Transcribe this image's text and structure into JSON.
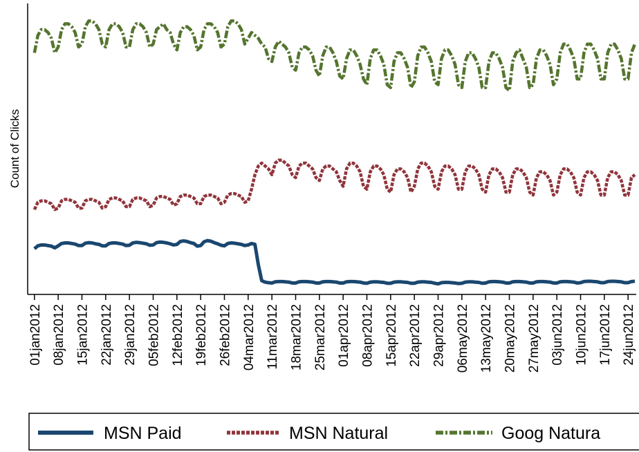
{
  "chart_data": {
    "type": "line",
    "ylabel": "Count of Clicks",
    "x": [
      0,
      1,
      2,
      3,
      4,
      5,
      6,
      7,
      8,
      9,
      10,
      11,
      12,
      13,
      14,
      15,
      16,
      17,
      18,
      19,
      20,
      21,
      22,
      23,
      24,
      25,
      26,
      27,
      28,
      29,
      30,
      31,
      32,
      33,
      34,
      35,
      36,
      37,
      38,
      39,
      40,
      41,
      42,
      43,
      44,
      45,
      46,
      47,
      48,
      49,
      50,
      51,
      52,
      53,
      54,
      55,
      56,
      57,
      58,
      59,
      60,
      61,
      62,
      63,
      64,
      65,
      66,
      67,
      68,
      69,
      70,
      71,
      72,
      73,
      74,
      75,
      76,
      77,
      78,
      79,
      80,
      81,
      82,
      83,
      84,
      85,
      86,
      87,
      88,
      89,
      90,
      91,
      92,
      93,
      94,
      95,
      96,
      97,
      98,
      99,
      100,
      101,
      102,
      103,
      104,
      105,
      106,
      107,
      108,
      109,
      110,
      111,
      112,
      113,
      114,
      115,
      116,
      117,
      118,
      119,
      120,
      121,
      122,
      123,
      124,
      125,
      126,
      127,
      128,
      129,
      130,
      131,
      132,
      133,
      134,
      135,
      136,
      137,
      138,
      139,
      140,
      141,
      142,
      143,
      144,
      145,
      146,
      147,
      148,
      149,
      150,
      151,
      152,
      153,
      154,
      155,
      156,
      157,
      158,
      159,
      160,
      161,
      162,
      163,
      164,
      165,
      166,
      167,
      168,
      169,
      170,
      171,
      172,
      173,
      174,
      175,
      176,
      177
    ],
    "series": [
      {
        "name": "MSN Paid",
        "color": "#1a476f",
        "style": "solid",
        "values": [
          15.5,
          16.5,
          16.8,
          16.8,
          16.6,
          16.4,
          15.8,
          16.5,
          17.3,
          17.5,
          17.5,
          17.3,
          17.1,
          16.6,
          16.6,
          17.4,
          17.6,
          17.5,
          17.2,
          17.0,
          16.5,
          16.5,
          17.3,
          17.5,
          17.5,
          17.3,
          17.1,
          16.6,
          16.7,
          17.5,
          17.7,
          17.6,
          17.4,
          17.2,
          16.7,
          16.8,
          17.6,
          17.8,
          17.7,
          17.5,
          17.2,
          16.8,
          17.0,
          18.0,
          18.2,
          18.0,
          17.6,
          17.3,
          16.4,
          16.6,
          17.9,
          18.3,
          18.1,
          17.6,
          17.2,
          16.7,
          16.5,
          17.3,
          17.5,
          17.4,
          17.2,
          17.0,
          16.6,
          16.8,
          17.3,
          17.0,
          10,
          4.5,
          4.0,
          3.8,
          3.7,
          4.1,
          4.2,
          4.2,
          4.1,
          4.0,
          3.7,
          3.7,
          4.1,
          4.2,
          4.2,
          4.1,
          4.0,
          3.7,
          3.7,
          4.1,
          4.2,
          4.2,
          4.1,
          4.0,
          3.7,
          3.7,
          4.1,
          4.2,
          4.2,
          4.1,
          4.0,
          3.7,
          3.6,
          4.0,
          4.1,
          4.1,
          4.0,
          3.9,
          3.6,
          3.6,
          4.0,
          4.1,
          4.1,
          4.0,
          3.9,
          3.6,
          3.6,
          4.0,
          4.1,
          4.1,
          4.0,
          3.9,
          3.6,
          3.4,
          3.8,
          3.9,
          3.9,
          3.8,
          3.7,
          3.5,
          3.6,
          4.0,
          4.1,
          4.1,
          4.0,
          3.9,
          3.6,
          3.7,
          4.1,
          4.2,
          4.2,
          4.1,
          4.0,
          3.7,
          3.7,
          4.1,
          4.2,
          4.2,
          4.1,
          4.0,
          3.7,
          3.7,
          4.1,
          4.2,
          4.2,
          4.1,
          4.0,
          3.7,
          3.7,
          4.1,
          4.2,
          4.2,
          4.1,
          4.0,
          3.7,
          3.8,
          4.2,
          4.3,
          4.3,
          4.2,
          4.1,
          3.8,
          3.8,
          4.2,
          4.3,
          4.3,
          4.2,
          4.1,
          3.8,
          3.8,
          4.2,
          4.3
        ]
      },
      {
        "name": "MSN Natural",
        "color": "#90353b",
        "style": "dash",
        "values": [
          29,
          31.5,
          32,
          32,
          31.5,
          31,
          29,
          29.5,
          32,
          32.5,
          32.5,
          32,
          31.5,
          29.5,
          29.5,
          32,
          32.5,
          32.5,
          32,
          31.5,
          29.5,
          30,
          32.5,
          33,
          33,
          32.5,
          32,
          30,
          30,
          32.5,
          33,
          33,
          32.5,
          32,
          30,
          30.5,
          33,
          33.5,
          33.5,
          33,
          32.5,
          30.5,
          31,
          33.5,
          34,
          34,
          33.5,
          33,
          31,
          31,
          33.5,
          34,
          34,
          33.5,
          33,
          31,
          31.5,
          34,
          34.5,
          34.5,
          34,
          33.5,
          31.5,
          32,
          36,
          41,
          44,
          45,
          44,
          43,
          41,
          45,
          46,
          46,
          45,
          44,
          41,
          40,
          44,
          45,
          45,
          44,
          43,
          40,
          39,
          43,
          44,
          44,
          43,
          42,
          39,
          37,
          43,
          45,
          45,
          44,
          42,
          37,
          36,
          42,
          44,
          44,
          43,
          41,
          36,
          35,
          41,
          43,
          43,
          42,
          40,
          35,
          37,
          43,
          45,
          45,
          44,
          42,
          37,
          36,
          42,
          44,
          44,
          43,
          41,
          36,
          36,
          42,
          44,
          44,
          43,
          41,
          36,
          35,
          41,
          43,
          43,
          42,
          40,
          35,
          35,
          41,
          43,
          43,
          42,
          40,
          35,
          34,
          40,
          42,
          42,
          41,
          39,
          34,
          35,
          41,
          43,
          43,
          42,
          40,
          35,
          34,
          40,
          42,
          42,
          41,
          39,
          34,
          34,
          40,
          42,
          42,
          41,
          39,
          34,
          34,
          40,
          41
        ]
      },
      {
        "name": "Goog Natura",
        "color": "#55752f",
        "style": "dashdot",
        "values": [
          83,
          89,
          91,
          91,
          90,
          88,
          83,
          85,
          91,
          93,
          93,
          92,
          90,
          85,
          86,
          92,
          94,
          94,
          93,
          91,
          86,
          85,
          91,
          93,
          93,
          92,
          90,
          85,
          85,
          91,
          93,
          93,
          92,
          90,
          85,
          86,
          91,
          92,
          93,
          91,
          90,
          86,
          84,
          90,
          92,
          92,
          91,
          89,
          84,
          85,
          91,
          93,
          93,
          92,
          90,
          85,
          86,
          92,
          94,
          94,
          93,
          91,
          86,
          88,
          90,
          89,
          88,
          86,
          85,
          81,
          80,
          85,
          87,
          86,
          85,
          83,
          78,
          77,
          83,
          85,
          85,
          84,
          82,
          77,
          75,
          82,
          85,
          85,
          83,
          80,
          75,
          74,
          81,
          84,
          84,
          82,
          79,
          74,
          72,
          81,
          84,
          84,
          82,
          79,
          72,
          71,
          80,
          83,
          83,
          81,
          78,
          71,
          73,
          82,
          85,
          85,
          83,
          80,
          73,
          72,
          81,
          84,
          84,
          82,
          79,
          72,
          71,
          80,
          83,
          83,
          81,
          78,
          71,
          71,
          80,
          83,
          83,
          81,
          78,
          71,
          70,
          80,
          83,
          84,
          81,
          78,
          71,
          72,
          81,
          84,
          84,
          82,
          79,
          72,
          74,
          83,
          86,
          86,
          84,
          81,
          74,
          74,
          83,
          86,
          86,
          84,
          81,
          74,
          74,
          83,
          86,
          86,
          84,
          81,
          74,
          74,
          83,
          86
        ]
      }
    ],
    "xlim": [
      -2,
      177
    ],
    "ylim": [
      0,
      100
    ],
    "xticks": [
      {
        "value": 0,
        "label": "01jan2012"
      },
      {
        "value": 7,
        "label": "08jan2012"
      },
      {
        "value": 14,
        "label": "15jan2012"
      },
      {
        "value": 21,
        "label": "22jan2012"
      },
      {
        "value": 28,
        "label": "29jan2012"
      },
      {
        "value": 35,
        "label": "05feb2012"
      },
      {
        "value": 42,
        "label": "12feb2012"
      },
      {
        "value": 49,
        "label": "19feb2012"
      },
      {
        "value": 56,
        "label": "26feb2012"
      },
      {
        "value": 63,
        "label": "04mar2012"
      },
      {
        "value": 70,
        "label": "11mar2012"
      },
      {
        "value": 77,
        "label": "18mar2012"
      },
      {
        "value": 84,
        "label": "25mar2012"
      },
      {
        "value": 91,
        "label": "01apr2012"
      },
      {
        "value": 98,
        "label": "08apr2012"
      },
      {
        "value": 105,
        "label": "15apr2012"
      },
      {
        "value": 112,
        "label": "22apr2012"
      },
      {
        "value": 119,
        "label": "29apr2012"
      },
      {
        "value": 126,
        "label": "06may2012"
      },
      {
        "value": 133,
        "label": "13may2012"
      },
      {
        "value": 140,
        "label": "20may2012"
      },
      {
        "value": 147,
        "label": "27may2012"
      },
      {
        "value": 154,
        "label": "03jun2012"
      },
      {
        "value": 161,
        "label": "10jun2012"
      },
      {
        "value": 168,
        "label": "17jun2012"
      },
      {
        "value": 175,
        "label": "24jun2012"
      }
    ]
  }
}
